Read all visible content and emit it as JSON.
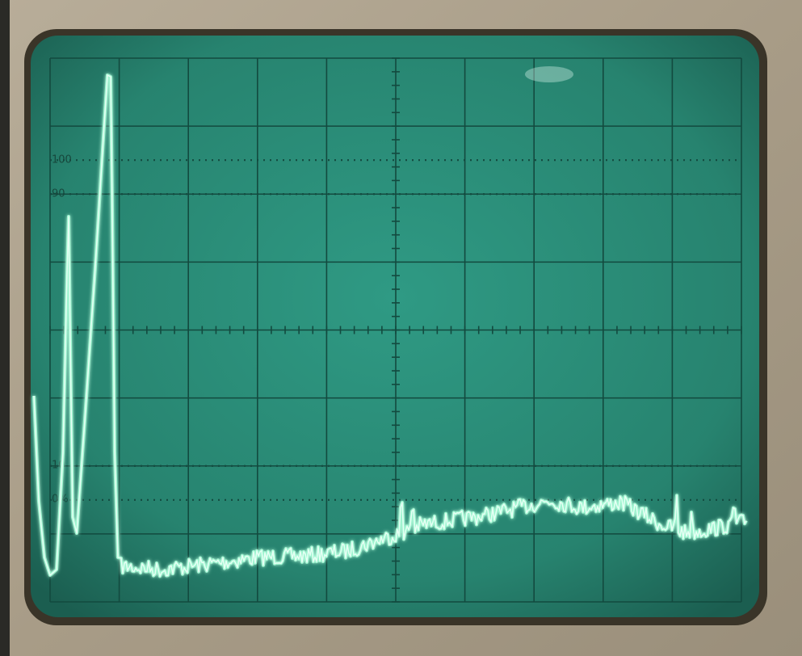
{
  "graticule_labels": [
    "100",
    "90",
    "10",
    "0%"
  ]
}
